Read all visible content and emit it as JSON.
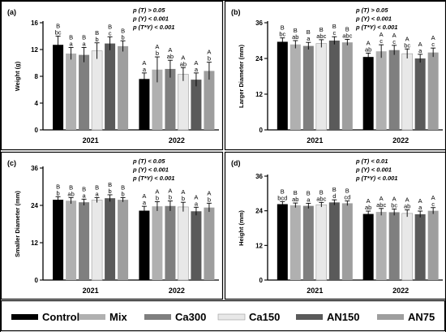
{
  "chart_data": [
    {
      "type": "bar",
      "panel": "(a)",
      "categories": [
        "2021",
        "2022"
      ],
      "ylabel": "Weight (g)",
      "ylim": [
        0,
        16
      ],
      "yticks": [
        0,
        4,
        8,
        12,
        16
      ],
      "pvalues": [
        "p (T) > 0.05",
        "p (Y) < 0.001",
        "p (T*Y) < 0.001"
      ],
      "series": [
        {
          "name": "Control",
          "values": [
            12.7,
            7.6
          ],
          "errors": [
            1.3,
            0.9
          ],
          "letters": [
            [
              "B",
              "bc"
            ],
            [
              "A",
              "a"
            ]
          ]
        },
        {
          "name": "Mix",
          "values": [
            11.4,
            9.0
          ],
          "errors": [
            0.9,
            1.9
          ],
          "letters": [
            [
              "B",
              "a"
            ],
            [
              "A",
              "b"
            ]
          ]
        },
        {
          "name": "Ca300",
          "values": [
            11.2,
            9.1
          ],
          "errors": [
            1.1,
            1.3
          ],
          "letters": [
            [
              "B",
              "a"
            ],
            [
              "A",
              "ab"
            ]
          ]
        },
        {
          "name": "Ca150",
          "values": [
            11.8,
            8.3
          ],
          "errors": [
            1.2,
            1.0
          ],
          "letters": [
            [
              "B",
              "b"
            ],
            [
              "A",
              "ab"
            ]
          ]
        },
        {
          "name": "AN150",
          "values": [
            12.9,
            7.5
          ],
          "errors": [
            1.0,
            1.0
          ],
          "letters": [
            [
              "B",
              "c"
            ],
            [
              "A",
              "a"
            ]
          ]
        },
        {
          "name": "AN75",
          "values": [
            12.5,
            8.8
          ],
          "errors": [
            0.8,
            1.3
          ],
          "letters": [
            [
              "B",
              "b"
            ],
            [
              "A",
              "b"
            ]
          ]
        }
      ]
    },
    {
      "type": "bar",
      "panel": "(b)",
      "categories": [
        "2021",
        "2022"
      ],
      "ylabel": "Larger Diameter (mm)",
      "ylim": [
        0,
        36
      ],
      "yticks": [
        0,
        12,
        24,
        36
      ],
      "pvalues": [
        "p (T) > 0.05",
        "p (Y) < 0.001",
        "p (T*Y) < 0.001"
      ],
      "series": [
        {
          "name": "Control",
          "values": [
            29.6,
            24.5
          ],
          "errors": [
            1.3,
            1.3
          ],
          "letters": [
            [
              "B",
              "bc"
            ],
            [
              "A",
              "ab"
            ]
          ]
        },
        {
          "name": "Mix",
          "values": [
            28.7,
            26.4
          ],
          "errors": [
            1.3,
            2.2
          ],
          "letters": [
            [
              "B",
              "ab"
            ],
            [
              "A",
              "c"
            ]
          ]
        },
        {
          "name": "Ca300",
          "values": [
            28.2,
            26.8
          ],
          "errors": [
            1.2,
            1.6
          ],
          "letters": [
            [
              "B",
              "a"
            ],
            [
              "A",
              "c"
            ]
          ]
        },
        {
          "name": "Ca150",
          "values": [
            29.0,
            25.6
          ],
          "errors": [
            1.3,
            1.6
          ],
          "letters": [
            [
              "B",
              "abc"
            ],
            [
              "A",
              "bc"
            ]
          ]
        },
        {
          "name": "AN150",
          "values": [
            30.0,
            24.0
          ],
          "errors": [
            1.3,
            1.4
          ],
          "letters": [
            [
              "B",
              "c"
            ],
            [
              "A",
              "a"
            ]
          ]
        },
        {
          "name": "AN75",
          "values": [
            29.4,
            26.0
          ],
          "errors": [
            1.0,
            1.5
          ],
          "letters": [
            [
              "B",
              "abc"
            ],
            [
              "A",
              "c"
            ]
          ]
        }
      ]
    },
    {
      "type": "bar",
      "panel": "(c)",
      "categories": [
        "2021",
        "2022"
      ],
      "ylabel": "Smaller Diameter (mm)",
      "ylim": [
        0,
        36
      ],
      "yticks": [
        0,
        12,
        24,
        36
      ],
      "pvalues": [
        "p (T) < 0.05",
        "p (Y) < 0.001",
        "p (T*Y) < 0.001"
      ],
      "series": [
        {
          "name": "Control",
          "values": [
            25.8,
            22.3
          ],
          "errors": [
            1.0,
            1.4
          ],
          "letters": [
            [
              "B",
              "b"
            ],
            [
              "A",
              "a"
            ]
          ]
        },
        {
          "name": "Mix",
          "values": [
            25.5,
            23.7
          ],
          "errors": [
            1.0,
            1.5
          ],
          "letters": [
            [
              "B",
              "ab"
            ],
            [
              "A",
              "b"
            ]
          ]
        },
        {
          "name": "Ca300",
          "values": [
            25.0,
            23.8
          ],
          "errors": [
            1.0,
            1.6
          ],
          "letters": [
            [
              "B",
              "a"
            ],
            [
              "A",
              "b"
            ]
          ]
        },
        {
          "name": "Ca150",
          "values": [
            25.7,
            23.5
          ],
          "errors": [
            0.8,
            1.5
          ],
          "letters": [
            [
              "B",
              "a"
            ],
            [
              "A",
              "b"
            ]
          ]
        },
        {
          "name": "AN150",
          "values": [
            26.3,
            22.1
          ],
          "errors": [
            1.1,
            1.3
          ],
          "letters": [
            [
              "B",
              "b"
            ],
            [
              "A",
              "a"
            ]
          ]
        },
        {
          "name": "AN75",
          "values": [
            25.8,
            23.3
          ],
          "errors": [
            0.7,
            1.4
          ],
          "letters": [
            [
              "B",
              "b"
            ],
            [
              "A",
              "b"
            ]
          ]
        }
      ]
    },
    {
      "type": "bar",
      "panel": "(d)",
      "categories": [
        "2021",
        "2022"
      ],
      "ylabel": "Height (mm)",
      "ylim": [
        0,
        36
      ],
      "yticks": [
        0,
        12,
        24,
        36
      ],
      "pvalues": [
        "p (T) < 0.01",
        "p (Y) < 0.001",
        "p (T*Y) < 0.001"
      ],
      "series": [
        {
          "name": "Control",
          "values": [
            26.3,
            22.9
          ],
          "errors": [
            0.9,
            1.0
          ],
          "letters": [
            [
              "B",
              "bcd"
            ],
            [
              "A",
              "ab"
            ]
          ]
        },
        {
          "name": "Mix",
          "values": [
            25.9,
            23.6
          ],
          "errors": [
            0.8,
            1.2
          ],
          "letters": [
            [
              "B",
              "ab"
            ],
            [
              "A",
              "abc"
            ]
          ]
        },
        {
          "name": "Ca300",
          "values": [
            25.7,
            23.5
          ],
          "errors": [
            0.9,
            1.1
          ],
          "letters": [
            [
              "B",
              "a"
            ],
            [
              "A",
              "bc"
            ]
          ]
        },
        {
          "name": "Ca150",
          "values": [
            26.1,
            23.1
          ],
          "errors": [
            0.8,
            1.2
          ],
          "letters": [
            [
              "B",
              "abc"
            ],
            [
              "A",
              "ab"
            ]
          ]
        },
        {
          "name": "AN150",
          "values": [
            26.9,
            22.8
          ],
          "errors": [
            0.9,
            1.1
          ],
          "letters": [
            [
              "B",
              "d"
            ],
            [
              "A",
              "a"
            ]
          ]
        },
        {
          "name": "AN75",
          "values": [
            26.6,
            24.0
          ],
          "errors": [
            0.8,
            1.1
          ],
          "letters": [
            [
              "B",
              "cd"
            ],
            [
              "A",
              "c"
            ]
          ]
        }
      ]
    }
  ],
  "legend": {
    "position": "bottom",
    "items": [
      {
        "name": "Control",
        "color": "#000000"
      },
      {
        "name": "Mix",
        "color": "#b0b0b0"
      },
      {
        "name": "Ca300",
        "color": "#7f7f7f"
      },
      {
        "name": "Ca150",
        "color": "#e8e8e8"
      },
      {
        "name": "AN150",
        "color": "#5a5a5a"
      },
      {
        "name": "AN75",
        "color": "#9e9e9e"
      }
    ]
  },
  "colors": {
    "Control": "#000000",
    "Mix": "#b0b0b0",
    "Ca300": "#7f7f7f",
    "Ca150": "#e8e8e8",
    "AN150": "#5a5a5a",
    "AN75": "#9e9e9e"
  }
}
